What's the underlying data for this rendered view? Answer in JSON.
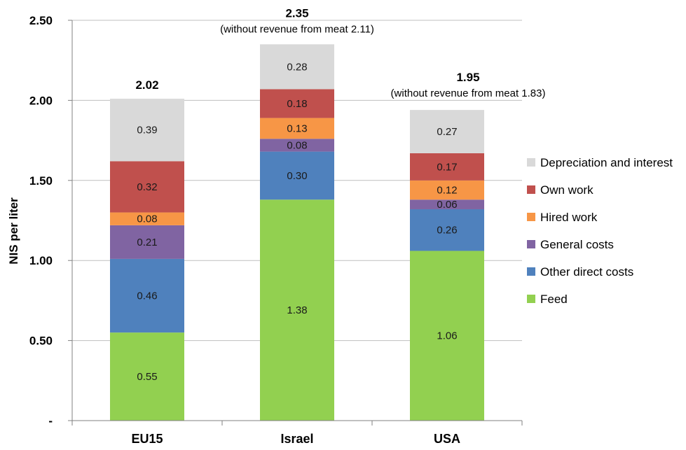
{
  "chart_data": {
    "type": "bar",
    "stacked": true,
    "ylabel": "NIS per liter",
    "ylim": [
      0,
      2.5
    ],
    "yticks": [
      0,
      0.5,
      1.0,
      1.5,
      2.0,
      2.5
    ],
    "ytick_labels": [
      "-",
      "0.50",
      "1.00",
      "1.50",
      "2.00",
      "2.50"
    ],
    "grid": true,
    "legend_position": "right",
    "categories": [
      "EU15",
      "Israel",
      "USA"
    ],
    "series": [
      {
        "name": "Feed",
        "color": "#92d050",
        "values": [
          0.55,
          1.38,
          1.06
        ],
        "labels": [
          "0.55",
          "1.38",
          "1.06"
        ]
      },
      {
        "name": "Other direct costs",
        "color": "#4f81bd",
        "values": [
          0.46,
          0.3,
          0.26
        ],
        "labels": [
          "0.46",
          "0.30",
          "0.26"
        ]
      },
      {
        "name": "General costs",
        "color": "#8064a2",
        "values": [
          0.21,
          0.08,
          0.06
        ],
        "labels": [
          "0.21",
          "0.08",
          "0.06"
        ]
      },
      {
        "name": "Hired work",
        "color": "#f79646",
        "values": [
          0.08,
          0.13,
          0.12
        ],
        "labels": [
          "0.08",
          "0.13",
          "0.12"
        ]
      },
      {
        "name": "Own work",
        "color": "#c0504d",
        "values": [
          0.32,
          0.18,
          0.17
        ],
        "labels": [
          "0.32",
          "0.18",
          "0.17"
        ]
      },
      {
        "name": "Depreciation and interest",
        "color": "#d9d9d9",
        "values": [
          0.39,
          0.28,
          0.27
        ],
        "labels": [
          "0.39",
          "0.28",
          "0.27"
        ]
      }
    ],
    "totals": [
      "2.02",
      "2.35",
      "1.95"
    ],
    "total_values": [
      2.02,
      2.35,
      1.95
    ],
    "annotations": [
      "",
      "(without revenue  from meat 2.11)",
      "(without revenue  from meat 1.83)"
    ]
  }
}
